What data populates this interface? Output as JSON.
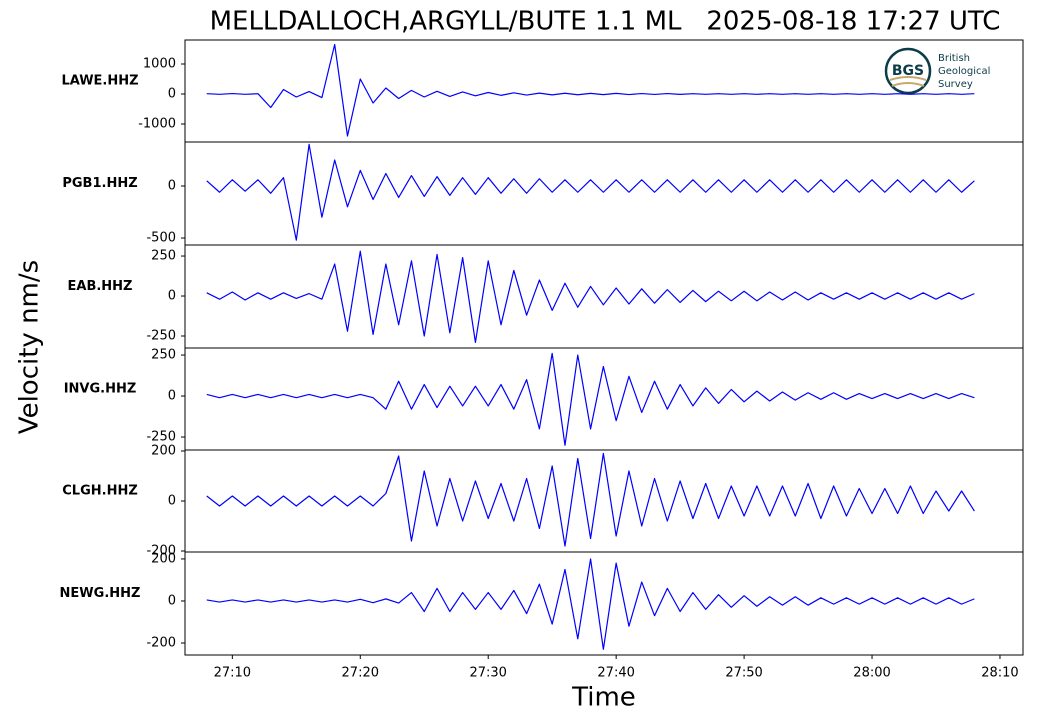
{
  "title": "MELLDALLOCH,ARGYLL/BUTE 1.1 ML   2025-08-18 17:27 UTC",
  "ylabel": "Velocity nm/s",
  "xlabel": "Time",
  "logo": {
    "mark": "BGS",
    "lines": [
      "British",
      "Geological",
      "Survey"
    ]
  },
  "chart_data": [
    {
      "type": "line",
      "station": "LAWE.HHZ",
      "color": "#0000ff",
      "xlim": [
        6.3,
        71.8
      ],
      "ylim": [
        -1600,
        1800
      ],
      "yticks": [
        -1000,
        0,
        1000
      ],
      "x": [
        8,
        9,
        10,
        11,
        12,
        13,
        14,
        15,
        16,
        17,
        18,
        19,
        20,
        21,
        22,
        23,
        24,
        25,
        26,
        27,
        28,
        29,
        30,
        31,
        32,
        33,
        34,
        35,
        36,
        37,
        38,
        39,
        40,
        41,
        42,
        43,
        44,
        45,
        46,
        47,
        48,
        49,
        50,
        51,
        52,
        53,
        54,
        55,
        56,
        57,
        58,
        59,
        60,
        61,
        62,
        63,
        64,
        65,
        66,
        67,
        68
      ],
      "values": [
        10,
        -10,
        15,
        -10,
        10,
        -450,
        150,
        -100,
        80,
        -120,
        1650,
        -1400,
        500,
        -300,
        200,
        -150,
        120,
        -100,
        90,
        -80,
        70,
        -60,
        50,
        -45,
        40,
        -35,
        30,
        -30,
        25,
        -25,
        20,
        -20,
        20,
        -18,
        15,
        -15,
        15,
        -12,
        10,
        -10,
        10,
        -10,
        10,
        -10,
        10,
        -10,
        10,
        -10,
        10,
        -10,
        10,
        -10,
        10,
        -10,
        10,
        -10,
        10,
        -10,
        10,
        -10,
        10
      ]
    },
    {
      "type": "line",
      "station": "PGB1.HHZ",
      "color": "#0000ff",
      "xlim": [
        6.3,
        71.8
      ],
      "ylim": [
        -567,
        423
      ],
      "yticks": [
        -500,
        0
      ],
      "x": [
        8,
        9,
        10,
        11,
        12,
        13,
        14,
        15,
        16,
        17,
        18,
        19,
        20,
        21,
        22,
        23,
        24,
        25,
        26,
        27,
        28,
        29,
        30,
        31,
        32,
        33,
        34,
        35,
        36,
        37,
        38,
        39,
        40,
        41,
        42,
        43,
        44,
        45,
        46,
        47,
        48,
        49,
        50,
        51,
        52,
        53,
        54,
        55,
        56,
        57,
        58,
        59,
        60,
        61,
        62,
        63,
        64,
        65,
        66,
        67,
        68
      ],
      "values": [
        50,
        -60,
        60,
        -50,
        60,
        -70,
        80,
        -520,
        400,
        -300,
        250,
        -200,
        150,
        -130,
        120,
        -110,
        100,
        -100,
        90,
        -90,
        80,
        -80,
        80,
        -70,
        70,
        -70,
        70,
        -60,
        60,
        -60,
        60,
        -60,
        60,
        -60,
        60,
        -60,
        60,
        -60,
        60,
        -60,
        60,
        -60,
        60,
        -60,
        60,
        -60,
        60,
        -60,
        60,
        -60,
        60,
        -60,
        60,
        -60,
        60,
        -60,
        60,
        -60,
        60,
        -60,
        50
      ]
    },
    {
      "type": "line",
      "station": "EAB.HHZ",
      "color": "#0000ff",
      "xlim": [
        6.3,
        71.8
      ],
      "ylim": [
        -325,
        319
      ],
      "yticks": [
        -250,
        0,
        250
      ],
      "x": [
        8,
        9,
        10,
        11,
        12,
        13,
        14,
        15,
        16,
        17,
        18,
        19,
        20,
        21,
        22,
        23,
        24,
        25,
        26,
        27,
        28,
        29,
        30,
        31,
        32,
        33,
        34,
        35,
        36,
        37,
        38,
        39,
        40,
        41,
        42,
        43,
        44,
        45,
        46,
        47,
        48,
        49,
        50,
        51,
        52,
        53,
        54,
        55,
        56,
        57,
        58,
        59,
        60,
        61,
        62,
        63,
        64,
        65,
        66,
        67,
        68
      ],
      "values": [
        20,
        -20,
        25,
        -25,
        20,
        -20,
        20,
        -15,
        15,
        -20,
        200,
        -220,
        280,
        -240,
        200,
        -180,
        220,
        -250,
        260,
        -230,
        240,
        -290,
        220,
        -180,
        160,
        -120,
        100,
        -90,
        80,
        -70,
        60,
        -55,
        50,
        -50,
        45,
        -45,
        40,
        -40,
        35,
        -35,
        30,
        -30,
        30,
        -30,
        25,
        -25,
        25,
        -25,
        20,
        -20,
        20,
        -20,
        20,
        -20,
        20,
        -20,
        20,
        -20,
        20,
        -20,
        15
      ]
    },
    {
      "type": "line",
      "station": "INVG.HHZ",
      "color": "#0000ff",
      "xlim": [
        6.3,
        71.8
      ],
      "ylim": [
        -329,
        293
      ],
      "yticks": [
        -250,
        0,
        250
      ],
      "x": [
        8,
        9,
        10,
        11,
        12,
        13,
        14,
        15,
        16,
        17,
        18,
        19,
        20,
        21,
        22,
        23,
        24,
        25,
        26,
        27,
        28,
        29,
        30,
        31,
        32,
        33,
        34,
        35,
        36,
        37,
        38,
        39,
        40,
        41,
        42,
        43,
        44,
        45,
        46,
        47,
        48,
        49,
        50,
        51,
        52,
        53,
        54,
        55,
        56,
        57,
        58,
        59,
        60,
        61,
        62,
        63,
        64,
        65,
        66,
        67,
        68
      ],
      "values": [
        10,
        -10,
        10,
        -10,
        10,
        -10,
        10,
        -10,
        10,
        -10,
        10,
        -10,
        10,
        -10,
        -80,
        90,
        -80,
        70,
        -70,
        60,
        -60,
        60,
        -60,
        70,
        -80,
        100,
        -200,
        260,
        -300,
        250,
        -200,
        180,
        -150,
        120,
        -100,
        90,
        -80,
        70,
        -60,
        50,
        -45,
        40,
        -35,
        30,
        -30,
        25,
        -25,
        20,
        -20,
        20,
        -20,
        15,
        -15,
        15,
        -15,
        15,
        -15,
        15,
        -15,
        15,
        -10
      ]
    },
    {
      "type": "line",
      "station": "CLGH.HHZ",
      "color": "#0000ff",
      "xlim": [
        6.3,
        71.8
      ],
      "ylim": [
        -204,
        204
      ],
      "yticks": [
        -200,
        0,
        200
      ],
      "x": [
        8,
        9,
        10,
        11,
        12,
        13,
        14,
        15,
        16,
        17,
        18,
        19,
        20,
        21,
        22,
        23,
        24,
        25,
        26,
        27,
        28,
        29,
        30,
        31,
        32,
        33,
        34,
        35,
        36,
        37,
        38,
        39,
        40,
        41,
        42,
        43,
        44,
        45,
        46,
        47,
        48,
        49,
        50,
        51,
        52,
        53,
        54,
        55,
        56,
        57,
        58,
        59,
        60,
        61,
        62,
        63,
        64,
        65,
        66,
        67,
        68
      ],
      "values": [
        20,
        -20,
        20,
        -20,
        20,
        -20,
        20,
        -20,
        20,
        -20,
        20,
        -20,
        20,
        -20,
        30,
        180,
        -160,
        120,
        -100,
        90,
        -80,
        80,
        -70,
        70,
        -80,
        90,
        -110,
        140,
        -180,
        170,
        -150,
        190,
        -140,
        120,
        -100,
        90,
        -80,
        80,
        -70,
        70,
        -70,
        60,
        -60,
        60,
        -60,
        60,
        -60,
        70,
        -70,
        60,
        -60,
        50,
        -50,
        50,
        -50,
        60,
        -50,
        40,
        -40,
        40,
        -40
      ]
    },
    {
      "type": "line",
      "station": "NEWG.HHZ",
      "color": "#0000ff",
      "xlim": [
        6.3,
        71.8
      ],
      "ylim": [
        -257,
        233
      ],
      "yticks": [
        -200,
        0,
        200
      ],
      "x": [
        8,
        9,
        10,
        11,
        12,
        13,
        14,
        15,
        16,
        17,
        18,
        19,
        20,
        21,
        22,
        23,
        24,
        25,
        26,
        27,
        28,
        29,
        30,
        31,
        32,
        33,
        34,
        35,
        36,
        37,
        38,
        39,
        40,
        41,
        42,
        43,
        44,
        45,
        46,
        47,
        48,
        49,
        50,
        51,
        52,
        53,
        54,
        55,
        56,
        57,
        58,
        59,
        60,
        61,
        62,
        63,
        64,
        65,
        66,
        67,
        68
      ],
      "values": [
        5,
        -5,
        5,
        -5,
        5,
        -5,
        5,
        -5,
        5,
        -5,
        5,
        -5,
        8,
        -8,
        10,
        -10,
        40,
        -50,
        60,
        -50,
        40,
        -40,
        40,
        -40,
        50,
        -60,
        80,
        -110,
        150,
        -180,
        200,
        -230,
        180,
        -120,
        90,
        -70,
        60,
        -50,
        40,
        -40,
        30,
        -30,
        25,
        -25,
        20,
        -20,
        20,
        -20,
        15,
        -15,
        15,
        -15,
        15,
        -15,
        15,
        -15,
        15,
        -15,
        15,
        -15,
        10
      ],
      "xticks": [
        {
          "value": 10,
          "label": "27:10"
        },
        {
          "value": 20,
          "label": "27:20"
        },
        {
          "value": 30,
          "label": "27:30"
        },
        {
          "value": 40,
          "label": "27:40"
        },
        {
          "value": 50,
          "label": "27:50"
        },
        {
          "value": 60,
          "label": "28:00"
        },
        {
          "value": 70,
          "label": "28:10"
        }
      ]
    }
  ]
}
